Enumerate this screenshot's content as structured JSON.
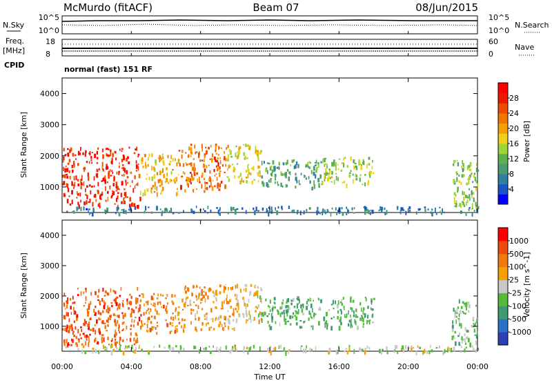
{
  "header": {
    "station": "McMurdo (fitACF)",
    "beam": "Beam 07",
    "date": "08/Jun/2015"
  },
  "housekeeping": {
    "nsky_label": "N.Sky",
    "nsky_ticks": [
      "10^5",
      "10^0"
    ],
    "nsearch_label": "N.Search",
    "nsearch_ticks": [
      "10^5",
      "10^0"
    ],
    "freq_label": "Freq.",
    "freq_unit": "[MHz]",
    "freq_ticks": [
      "18",
      "8"
    ],
    "nave_label": "Nave",
    "nave_ticks": [
      "60",
      "0"
    ],
    "cpid_label": "CPID",
    "cpid_text": "normal (fast) 151 RF"
  },
  "axes": {
    "xlabel": "Time UT",
    "ylabel": "Slant Range [km]"
  },
  "colorbars": {
    "power": {
      "label": "Power [dB]",
      "ticks": [
        "28",
        "24",
        "20",
        "16",
        "12",
        "8",
        "4"
      ],
      "colors": [
        "#0000ff",
        "#1a55c8",
        "#2f7fa0",
        "#4a9a74",
        "#5eb04e",
        "#9ed33a",
        "#f0d018",
        "#f5a000",
        "#f07800",
        "#f04a00",
        "#ee1800",
        "#ff0000"
      ]
    },
    "velocity": {
      "label": "Velocity [m s^-1]",
      "ticks": [
        "1000",
        "500",
        "100",
        "25",
        "-25",
        "-100",
        "-500",
        "-1000"
      ],
      "colors": [
        "#2a3fb8",
        "#2a72c8",
        "#3f9a72",
        "#55bb3c",
        "#c8c8c8",
        "#f5a000",
        "#f07a10",
        "#ee4a10",
        "#ff0000"
      ]
    }
  },
  "chart_data": [
    {
      "type": "heatmap",
      "panel": "power",
      "x_axis": {
        "label": "Time UT",
        "range": [
          "00:00",
          "24:00"
        ],
        "ticks": [
          "00:00",
          "04:00",
          "08:00",
          "12:00",
          "16:00",
          "20:00",
          "00:00"
        ]
      },
      "y_axis": {
        "label": "Slant Range [km]",
        "range": [
          180,
          4500
        ],
        "ticks": [
          1000,
          2000,
          3000,
          4000
        ]
      },
      "value_label": "Power [dB]",
      "value_range": [
        0,
        30
      ],
      "echo_regions": [
        {
          "t_start": 0.0,
          "t_end": 4.5,
          "r_min": 400,
          "r_max": 2300,
          "value": 26
        },
        {
          "t_start": 4.5,
          "t_end": 6.7,
          "r_min": 800,
          "r_max": 2100,
          "value": 18
        },
        {
          "t_start": 6.7,
          "t_end": 9.5,
          "r_min": 900,
          "r_max": 2400,
          "value": 22
        },
        {
          "t_start": 9.5,
          "t_end": 11.5,
          "r_min": 1200,
          "r_max": 2400,
          "value": 16
        },
        {
          "t_start": 11.5,
          "t_end": 15.0,
          "r_min": 1000,
          "r_max": 1900,
          "value": 10
        },
        {
          "t_start": 15.0,
          "t_end": 18.0,
          "r_min": 1100,
          "r_max": 2000,
          "value": 14
        },
        {
          "t_start": 0.0,
          "t_end": 24.0,
          "r_min": 180,
          "r_max": 400,
          "value": 6
        },
        {
          "t_start": 22.5,
          "t_end": 24.0,
          "r_min": 250,
          "r_max": 1900,
          "value": 12
        }
      ]
    },
    {
      "type": "heatmap",
      "panel": "velocity",
      "x_axis": {
        "label": "Time UT",
        "range": [
          "00:00",
          "24:00"
        ],
        "ticks": [
          "00:00",
          "04:00",
          "08:00",
          "12:00",
          "16:00",
          "20:00",
          "00:00"
        ]
      },
      "y_axis": {
        "label": "Slant Range [km]",
        "range": [
          180,
          4500
        ],
        "ticks": [
          1000,
          2000,
          3000,
          4000
        ]
      },
      "value_label": "Velocity [m s^-1]",
      "value_range": [
        -1000,
        1000
      ],
      "echo_regions": [
        {
          "t_start": 0.0,
          "t_end": 4.5,
          "r_min": 400,
          "r_max": 2300,
          "value": 600
        },
        {
          "t_start": 4.5,
          "t_end": 7.0,
          "r_min": 800,
          "r_max": 2100,
          "value": 400
        },
        {
          "t_start": 7.0,
          "t_end": 10.0,
          "r_min": 900,
          "r_max": 2400,
          "value": 300
        },
        {
          "t_start": 10.0,
          "t_end": 11.5,
          "r_min": 1200,
          "r_max": 2400,
          "value": 100
        },
        {
          "t_start": 11.5,
          "t_end": 18.0,
          "r_min": 1000,
          "r_max": 2000,
          "value": -300
        },
        {
          "t_start": 0.0,
          "t_end": 24.0,
          "r_min": 180,
          "r_max": 400,
          "value": -50
        },
        {
          "t_start": 22.5,
          "t_end": 24.0,
          "r_min": 250,
          "r_max": 1900,
          "value": -200
        }
      ]
    }
  ]
}
